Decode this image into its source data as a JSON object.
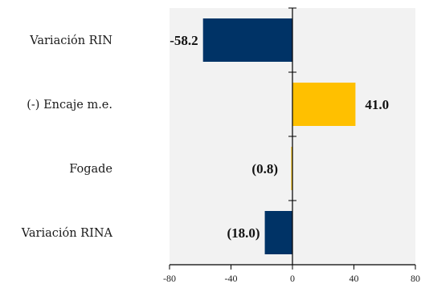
{
  "chart_data": {
    "type": "bar",
    "orientation": "horizontal",
    "categories": [
      "Variación RIN",
      "(-) Encaje m.e.",
      "Fogade",
      "Variación RINA"
    ],
    "values": [
      -58.2,
      41.0,
      -0.8,
      -18.0
    ],
    "value_labels": [
      "-58.2",
      "41.0",
      "(0.8)",
      "(18.0)"
    ],
    "bar_colors": [
      "#003366",
      "#FFC000",
      "#FFC000",
      "#003366"
    ],
    "xlim": [
      -80,
      80
    ],
    "xticks": [
      -80,
      -40,
      0,
      40,
      80
    ],
    "xtick_labels": [
      "-80",
      "-40",
      "0",
      "40",
      "80"
    ],
    "plot_background": "#F2F2F2",
    "grid": false
  }
}
